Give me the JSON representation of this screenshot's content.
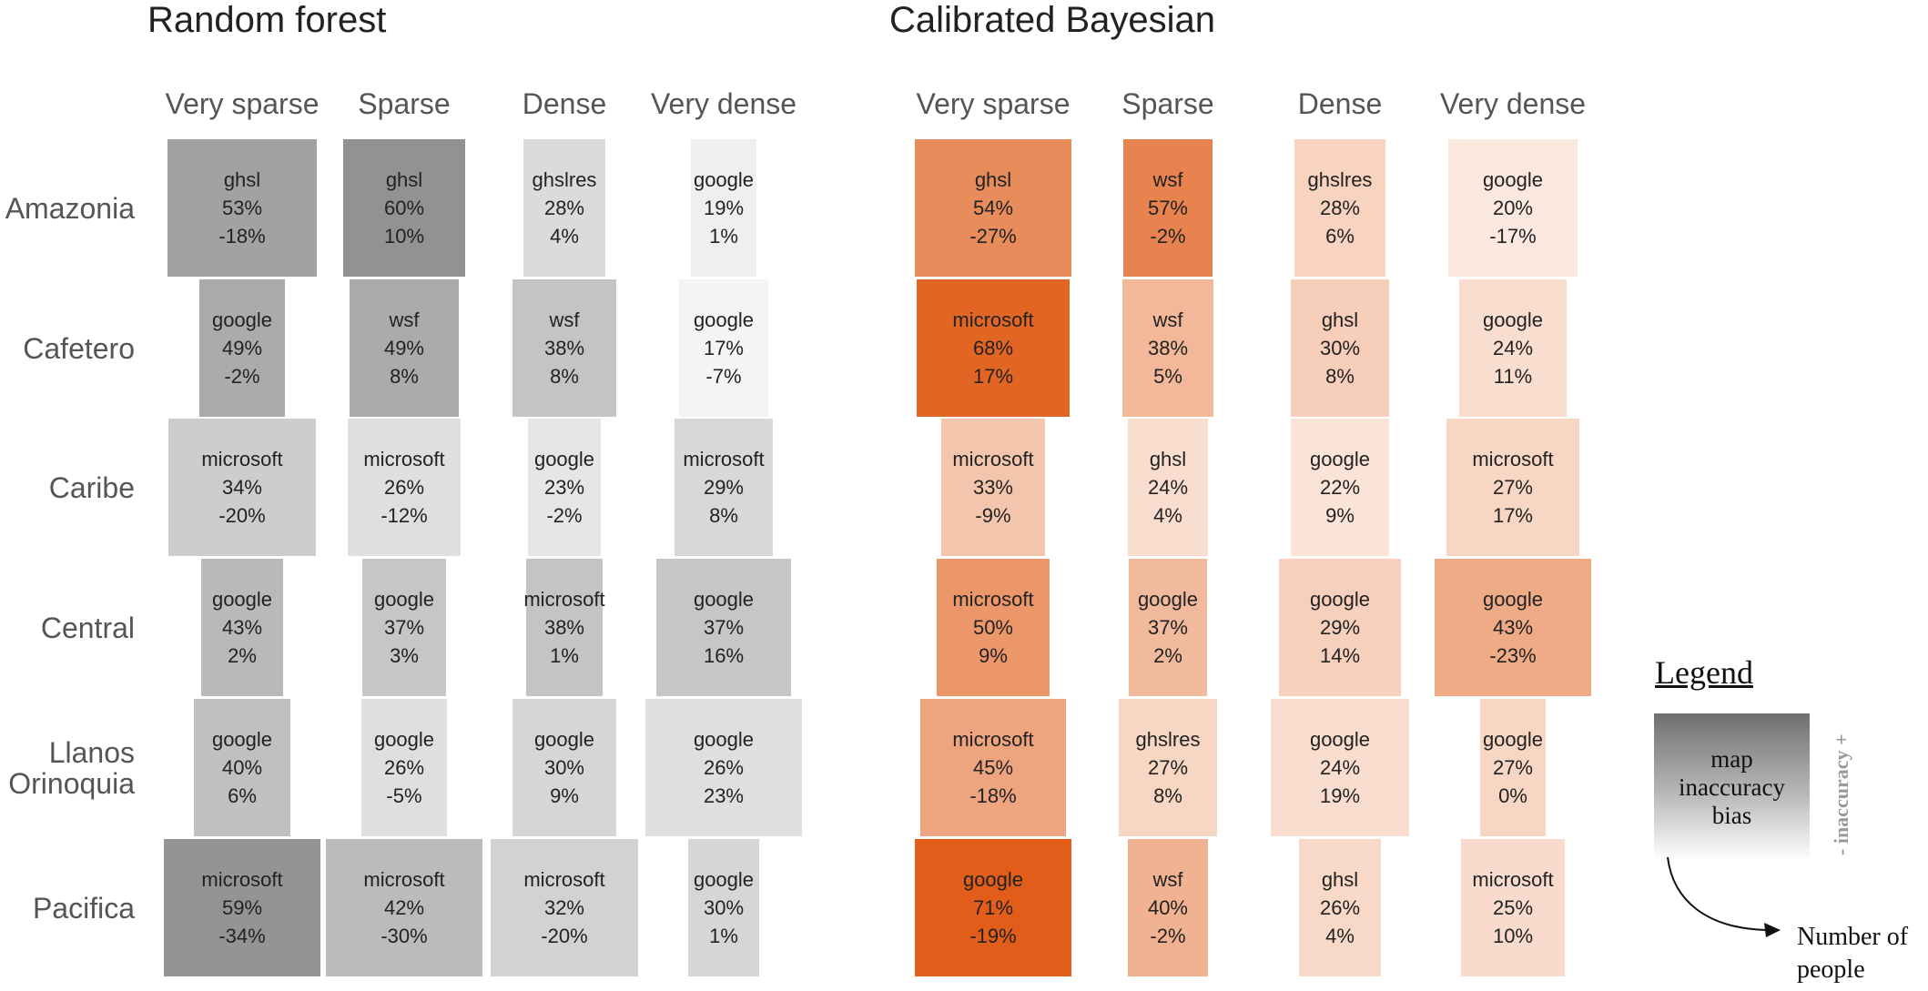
{
  "chart_data": {
    "type": "table",
    "panels": [
      {
        "title": "Random forest",
        "base_color": "#777777",
        "columns": [
          "Very sparse",
          "Sparse",
          "Dense",
          "Very dense"
        ],
        "rows": [
          "Amazonia",
          "Cafetero",
          "Caribe",
          "Central",
          "Llanos\nOrinoquia",
          "Pacifica"
        ],
        "cells": [
          [
            {
              "name": "ghsl",
              "accuracy": "53%",
              "bias": "-18%"
            },
            {
              "name": "ghsl",
              "accuracy": "60%",
              "bias": "10%"
            },
            {
              "name": "ghslres",
              "accuracy": "28%",
              "bias": "4%"
            },
            {
              "name": "google",
              "accuracy": "19%",
              "bias": "1%"
            }
          ],
          [
            {
              "name": "google",
              "accuracy": "49%",
              "bias": "-2%"
            },
            {
              "name": "wsf",
              "accuracy": "49%",
              "bias": "8%"
            },
            {
              "name": "wsf",
              "accuracy": "38%",
              "bias": "8%"
            },
            {
              "name": "google",
              "accuracy": "17%",
              "bias": "-7%"
            }
          ],
          [
            {
              "name": "microsoft",
              "accuracy": "34%",
              "bias": "-20%"
            },
            {
              "name": "microsoft",
              "accuracy": "26%",
              "bias": "-12%"
            },
            {
              "name": "google",
              "accuracy": "23%",
              "bias": "-2%"
            },
            {
              "name": "microsoft",
              "accuracy": "29%",
              "bias": "8%"
            }
          ],
          [
            {
              "name": "google",
              "accuracy": "43%",
              "bias": "2%"
            },
            {
              "name": "google",
              "accuracy": "37%",
              "bias": "3%"
            },
            {
              "name": "microsoft",
              "accuracy": "38%",
              "bias": "1%"
            },
            {
              "name": "google",
              "accuracy": "37%",
              "bias": "16%"
            }
          ],
          [
            {
              "name": "google",
              "accuracy": "40%",
              "bias": "6%"
            },
            {
              "name": "google",
              "accuracy": "26%",
              "bias": "-5%"
            },
            {
              "name": "google",
              "accuracy": "30%",
              "bias": "9%"
            },
            {
              "name": "google",
              "accuracy": "26%",
              "bias": "23%"
            }
          ],
          [
            {
              "name": "microsoft",
              "accuracy": "59%",
              "bias": "-34%"
            },
            {
              "name": "microsoft",
              "accuracy": "42%",
              "bias": "-30%"
            },
            {
              "name": "microsoft",
              "accuracy": "32%",
              "bias": "-20%"
            },
            {
              "name": "google",
              "accuracy": "30%",
              "bias": "1%"
            }
          ]
        ]
      },
      {
        "title": "Calibrated Bayesian",
        "base_color": "#e05a14",
        "columns": [
          "Very sparse",
          "Sparse",
          "Dense",
          "Very dense"
        ],
        "rows": [
          "Amazonia",
          "Cafetero",
          "Caribe",
          "Central",
          "Llanos\nOrinoquia",
          "Pacifica"
        ],
        "cells": [
          [
            {
              "name": "ghsl",
              "accuracy": "54%",
              "bias": "-27%"
            },
            {
              "name": "wsf",
              "accuracy": "57%",
              "bias": "-2%"
            },
            {
              "name": "ghslres",
              "accuracy": "28%",
              "bias": "6%"
            },
            {
              "name": "google",
              "accuracy": "20%",
              "bias": "-17%"
            }
          ],
          [
            {
              "name": "microsoft",
              "accuracy": "68%",
              "bias": "17%"
            },
            {
              "name": "wsf",
              "accuracy": "38%",
              "bias": "5%"
            },
            {
              "name": "ghsl",
              "accuracy": "30%",
              "bias": "8%"
            },
            {
              "name": "google",
              "accuracy": "24%",
              "bias": "11%"
            }
          ],
          [
            {
              "name": "microsoft",
              "accuracy": "33%",
              "bias": "-9%"
            },
            {
              "name": "ghsl",
              "accuracy": "24%",
              "bias": "4%"
            },
            {
              "name": "google",
              "accuracy": "22%",
              "bias": "9%"
            },
            {
              "name": "microsoft",
              "accuracy": "27%",
              "bias": "17%"
            }
          ],
          [
            {
              "name": "microsoft",
              "accuracy": "50%",
              "bias": "9%"
            },
            {
              "name": "google",
              "accuracy": "37%",
              "bias": "2%"
            },
            {
              "name": "google",
              "accuracy": "29%",
              "bias": "14%"
            },
            {
              "name": "google",
              "accuracy": "43%",
              "bias": "-23%"
            }
          ],
          [
            {
              "name": "microsoft",
              "accuracy": "45%",
              "bias": "-18%"
            },
            {
              "name": "ghslres",
              "accuracy": "27%",
              "bias": "8%"
            },
            {
              "name": "google",
              "accuracy": "24%",
              "bias": "19%"
            },
            {
              "name": "google",
              "accuracy": "27%",
              "bias": "0%"
            }
          ],
          [
            {
              "name": "google",
              "accuracy": "71%",
              "bias": "-19%"
            },
            {
              "name": "wsf",
              "accuracy": "40%",
              "bias": "-2%"
            },
            {
              "name": "ghsl",
              "accuracy": "26%",
              "bias": "4%"
            },
            {
              "name": "microsoft",
              "accuracy": "25%",
              "bias": "10%"
            }
          ]
        ]
      }
    ],
    "legend": {
      "title": "Legend",
      "box_lines": [
        "map",
        "inaccuracy",
        "bias"
      ],
      "side_label": "- inaccuracy +",
      "width_label": "Number of\npeople"
    }
  }
}
